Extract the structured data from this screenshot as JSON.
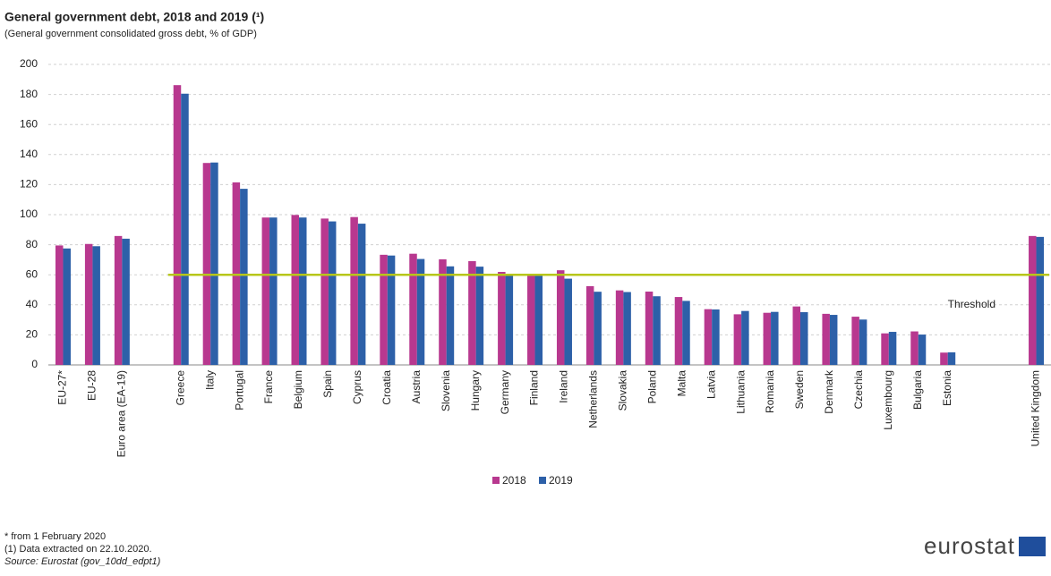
{
  "chart_data": {
    "type": "bar",
    "title": "General government debt, 2018 and 2019 (¹)",
    "subtitle": "(General government consolidated gross debt, % of GDP)",
    "categories": [
      "EU-27*",
      "EU-28",
      "Euro area (EA-19)",
      null,
      "Greece",
      "Italy",
      "Portugal",
      "France",
      "Belgium",
      "Spain",
      "Cyprus",
      "Croatia",
      "Austria",
      "Slovenia",
      "Hungary",
      "Germany",
      "Finland",
      "Ireland",
      "Netherlands",
      "Slovakia",
      "Poland",
      "Malta",
      "Latvia",
      "Lithuania",
      "Romania",
      "Sweden",
      "Denmark",
      "Czechia",
      "Luxembourg",
      "Bulgaria",
      "Estonia",
      null,
      null,
      "United Kingdom"
    ],
    "series": [
      {
        "name": "2018",
        "color": "#b8388f",
        "values": [
          79.5,
          80.5,
          85.8,
          null,
          186.2,
          134.4,
          121.5,
          98.1,
          99.8,
          97.4,
          98.4,
          73.3,
          74.0,
          70.3,
          69.1,
          61.9,
          59.6,
          63.0,
          52.4,
          49.6,
          48.8,
          45.2,
          37.1,
          33.7,
          34.7,
          38.9,
          34.0,
          32.1,
          21.0,
          22.3,
          8.2,
          null,
          null,
          85.8
        ]
      },
      {
        "name": "2019",
        "color": "#2d60a8",
        "values": [
          77.5,
          79.0,
          84.0,
          null,
          180.5,
          134.7,
          117.2,
          98.1,
          98.1,
          95.5,
          94.0,
          72.8,
          70.5,
          65.6,
          65.4,
          59.6,
          59.3,
          57.4,
          48.7,
          48.5,
          45.7,
          42.6,
          36.9,
          35.9,
          35.3,
          35.1,
          33.3,
          30.2,
          22.0,
          20.2,
          8.4,
          null,
          null,
          85.2
        ]
      }
    ],
    "threshold": {
      "value": 60,
      "label": "Threshold",
      "color": "#b7c61a"
    },
    "ylim": [
      0,
      200
    ],
    "yticks": [
      0,
      20,
      40,
      60,
      80,
      100,
      120,
      140,
      160,
      180,
      200
    ],
    "grid": true,
    "footnotes": [
      "* from 1 February 2020",
      "(1) Data extracted on 22.10.2020.",
      "Source: Eurostat (gov_10dd_edpt1)"
    ],
    "logo": "eurostat"
  }
}
